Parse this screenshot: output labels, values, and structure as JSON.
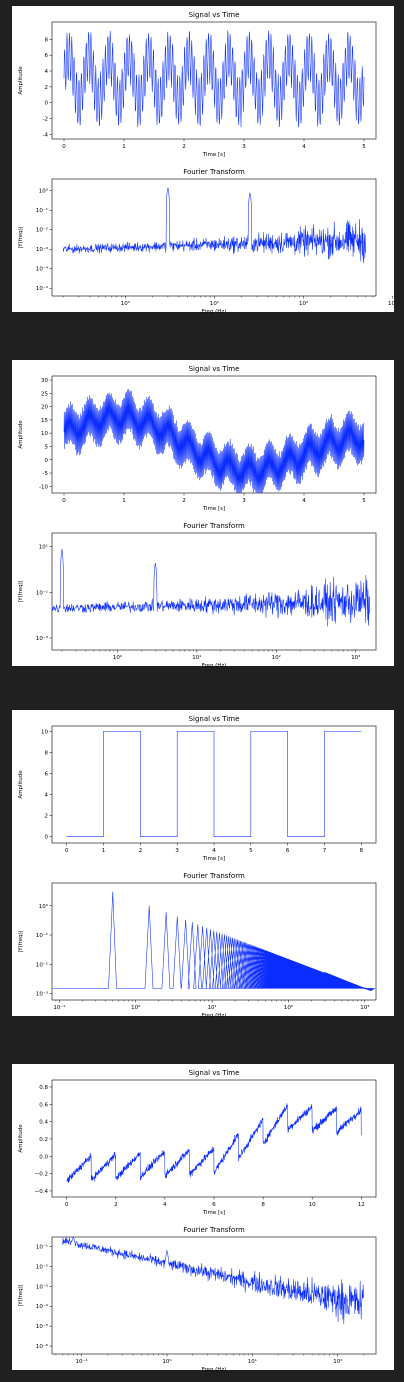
{
  "chart_data": [
    {
      "type": "line",
      "title": "Signal vs Time",
      "xlabel": "Time [s]",
      "ylabel": "Amplitude",
      "xlim": [
        -0.2,
        5.2
      ],
      "ylim": [
        -4.6,
        10.2
      ],
      "xticks": [
        0,
        1,
        2,
        3,
        4,
        5
      ],
      "yticks": [
        -4,
        -2,
        0,
        2,
        4,
        6,
        8
      ],
      "yscale": "linear",
      "color": "#0a2cff",
      "signal": {
        "offset": 3.0,
        "sin": [
          {
            "amp": 3.0,
            "freq": 3
          },
          {
            "amp": 3.0,
            "freq": 25
          }
        ],
        "noise": 0.4,
        "t0": 0,
        "t1": 5
      }
    },
    {
      "type": "line",
      "title": "Fourier Transform",
      "xlabel": "Freq (Hz)",
      "ylabel": "|Y(freq)|",
      "xscale": "log",
      "yscale": "log",
      "xlim": [
        0.15,
        650
      ],
      "ylim": [
        4e-06,
        4
      ],
      "xticks": [
        1,
        10,
        100,
        1000
      ],
      "xticklabels": [
        "10⁰",
        "10¹",
        "10²",
        "10³"
      ],
      "yticks": [
        1e-05,
        0.0001,
        0.001,
        0.01,
        0.1,
        1
      ],
      "yticklabels": [
        "10⁻⁵",
        "10⁻⁴",
        "10⁻³",
        "10⁻²",
        "10⁻¹",
        "10⁰"
      ],
      "color": "#0a2cff",
      "spectrum": {
        "f0": 0.2,
        "f1": 500,
        "peaks": [
          {
            "f": 3,
            "y": 1.5
          },
          {
            "f": 25,
            "y": 0.8
          }
        ],
        "floor": 0.001,
        "floor_hi": 0.003
      }
    },
    {
      "type": "line",
      "title": "Signal vs Time",
      "xlabel": "Time [s]",
      "ylabel": "Amplitude",
      "xlim": [
        -0.2,
        5.2
      ],
      "ylim": [
        -12.5,
        31.5
      ],
      "xticks": [
        0,
        1,
        2,
        3,
        4,
        5
      ],
      "yticks": [
        -10,
        -5,
        0,
        5,
        10,
        15,
        20,
        25,
        30
      ],
      "yscale": "linear",
      "color": "#0a2cff",
      "signal": {
        "offset": 10,
        "trend": -2,
        "sin": [
          {
            "amp": 8,
            "freq": 0.25
          },
          {
            "amp": 3,
            "freq": 3
          },
          {
            "amp": 7,
            "freq": 60
          }
        ],
        "noise": 1.0,
        "t0": 0,
        "t1": 5
      }
    },
    {
      "type": "line",
      "title": "Fourier Transform",
      "xlabel": "Freq (Hz)",
      "ylabel": "|Y(freq)|",
      "xscale": "log",
      "yscale": "log",
      "xlim": [
        0.15,
        1800
      ],
      "ylim": [
        0.0003,
        40
      ],
      "xticks": [
        1,
        10,
        100,
        1000
      ],
      "xticklabels": [
        "10⁰",
        "10¹",
        "10²",
        "10³"
      ],
      "yticks": [
        0.001,
        0.1,
        10
      ],
      "yticklabels": [
        "10⁻³",
        "10⁻¹",
        "10¹"
      ],
      "color": "#0a2cff",
      "spectrum": {
        "f0": 0.15,
        "f1": 1500,
        "peaks": [
          {
            "f": 0.2,
            "y": 8
          },
          {
            "f": 3,
            "y": 2
          }
        ],
        "floor": 0.02,
        "floor_hi": 0.04
      }
    },
    {
      "type": "line",
      "title": "Signal vs Time",
      "xlabel": "Time [s]",
      "ylabel": "Amplitude",
      "xlim": [
        -0.4,
        8.4
      ],
      "ylim": [
        -0.6,
        10.5
      ],
      "xticks": [
        0,
        1,
        2,
        3,
        4,
        5,
        6,
        7,
        8
      ],
      "yticks": [
        0,
        2,
        4,
        6,
        8,
        10
      ],
      "yscale": "linear",
      "color": "#0a2cff",
      "square": {
        "low": 0,
        "high": 10,
        "edges": [
          1,
          2,
          3,
          4,
          5,
          6,
          7
        ],
        "t0": 0,
        "t1": 8
      }
    },
    {
      "type": "line",
      "title": "Fourier Transform",
      "xlabel": "Freq (Hz)",
      "ylabel": "|Y(freq)|",
      "xscale": "log",
      "yscale": "log",
      "xlim": [
        0.08,
        1400
      ],
      "ylim": [
        0.0006,
        6
      ],
      "xticks": [
        0.1,
        1,
        10,
        100,
        1000
      ],
      "xticklabels": [
        "10⁻¹",
        "10⁰",
        "10¹",
        "10²",
        "10³"
      ],
      "yticks": [
        0.001,
        0.01,
        0.1,
        1
      ],
      "yticklabels": [
        "10⁻³",
        "10⁻²",
        "10⁻¹",
        "10⁰"
      ],
      "color": "#0a2cff",
      "harmonics": {
        "f0": 0.5,
        "y0": 3,
        "floor": 0.0015,
        "fmax": 1200
      }
    },
    {
      "type": "line",
      "title": "Signal vs Time",
      "xlabel": "Time [s]",
      "ylabel": "Amplitude",
      "xlim": [
        -0.6,
        12.6
      ],
      "ylim": [
        -0.47,
        0.88
      ],
      "xticks": [
        0,
        2,
        4,
        6,
        8,
        10,
        12
      ],
      "yticks": [
        -0.4,
        -0.2,
        0.0,
        0.2,
        0.4,
        0.6,
        0.8
      ],
      "yticklabels": [
        "−0.4",
        "−0.2",
        "0.0",
        "0.2",
        "0.4",
        "0.6",
        "0.8"
      ],
      "yscale": "linear",
      "color": "#0a2cff",
      "sawtooth": {
        "period": 1.0,
        "amp": 0.28,
        "baseline": [
          [
            0,
            -0.15
          ],
          [
            6,
            -0.05
          ],
          [
            9,
            0.45
          ],
          [
            12,
            0.4
          ]
        ],
        "noise": 0.03,
        "t0": 0,
        "t1": 12
      }
    },
    {
      "type": "line",
      "title": "Fourier Transform",
      "xlabel": "Freq (Hz)",
      "ylabel": "|Y(freq)|",
      "xscale": "log",
      "yscale": "log",
      "xlim": [
        0.045,
        280
      ],
      "ylim": [
        4e-07,
        0.3
      ],
      "xticks": [
        0.1,
        1,
        10,
        100
      ],
      "xticklabels": [
        "10⁻¹",
        "10⁰",
        "10¹",
        "10²"
      ],
      "yticks": [
        1e-06,
        1e-05,
        0.0001,
        0.001,
        0.01,
        0.1
      ],
      "yticklabels": [
        "10⁻⁶",
        "10⁻⁵",
        "10⁻⁴",
        "10⁻³",
        "10⁻²",
        "10⁻¹"
      ],
      "color": "#0a2cff",
      "spectrum": {
        "f0": 0.06,
        "f1": 200,
        "peaks": [
          {
            "f": 0.08,
            "y": 0.15
          },
          {
            "f": 1,
            "y": 0.05
          }
        ],
        "floor": 0.2,
        "floor_hi": 5e-05,
        "decay": true
      }
    }
  ]
}
